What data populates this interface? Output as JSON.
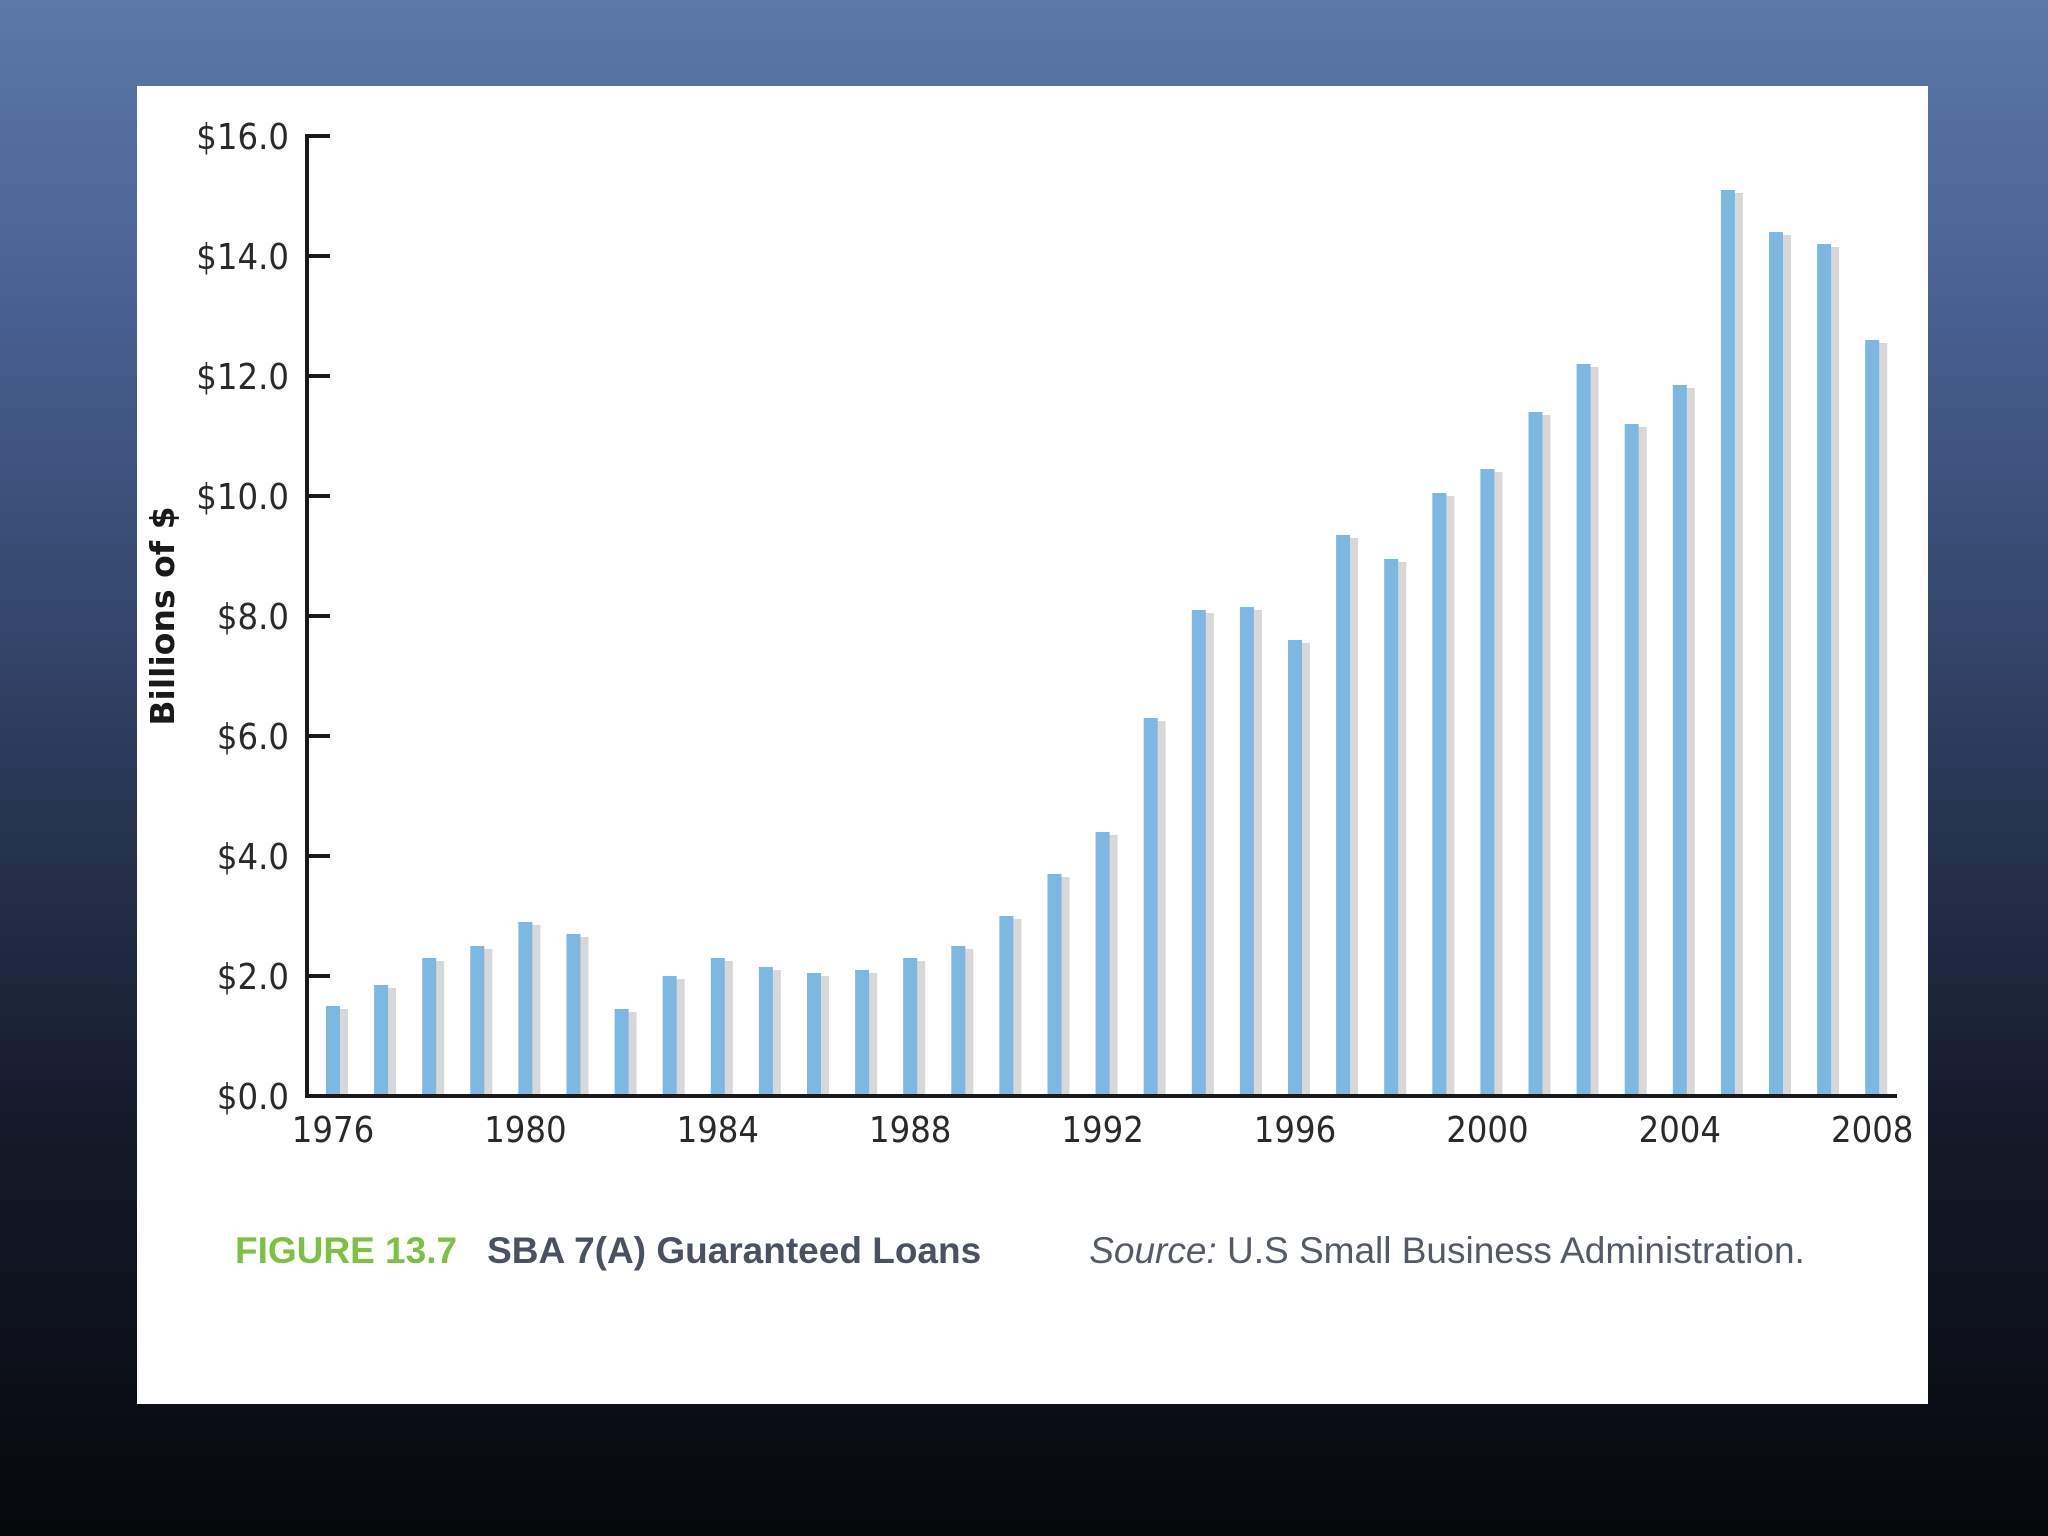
{
  "chart_data": {
    "type": "bar",
    "ylabel": "Billions of $",
    "ylim": [
      0,
      16
    ],
    "y_ticks": [
      "$0.0",
      "$2.0",
      "$4.0",
      "$6.0",
      "$8.0",
      "$10.0",
      "$12.0",
      "$14.0",
      "$16.0"
    ],
    "x_ticks": [
      "1976",
      "1980",
      "1984",
      "1988",
      "1992",
      "1996",
      "2000",
      "2004",
      "2008"
    ],
    "grid": false,
    "categories": [
      1976,
      1977,
      1978,
      1979,
      1980,
      1981,
      1982,
      1983,
      1984,
      1985,
      1986,
      1987,
      1988,
      1989,
      1990,
      1991,
      1992,
      1993,
      1994,
      1995,
      1996,
      1997,
      1998,
      1999,
      2000,
      2001,
      2002,
      2003,
      2004,
      2005,
      2006,
      2007,
      2008
    ],
    "values": [
      1.5,
      1.85,
      2.3,
      2.5,
      2.9,
      2.7,
      1.45,
      2.0,
      2.3,
      2.15,
      2.05,
      2.1,
      2.3,
      2.5,
      3.0,
      3.7,
      4.4,
      6.3,
      8.1,
      8.15,
      7.6,
      9.35,
      8.95,
      10.05,
      10.45,
      11.4,
      12.2,
      11.2,
      11.85,
      15.1,
      14.4,
      14.2,
      12.6
    ],
    "bar_color": "#7db8e2",
    "shadow_color": "#d8d8d8"
  },
  "caption": {
    "figure_number": "FIGURE 13.7",
    "title": "SBA 7(A) Guaranteed Loans",
    "source_label": "Source:",
    "source_text": " U.S Small Business Administration."
  }
}
